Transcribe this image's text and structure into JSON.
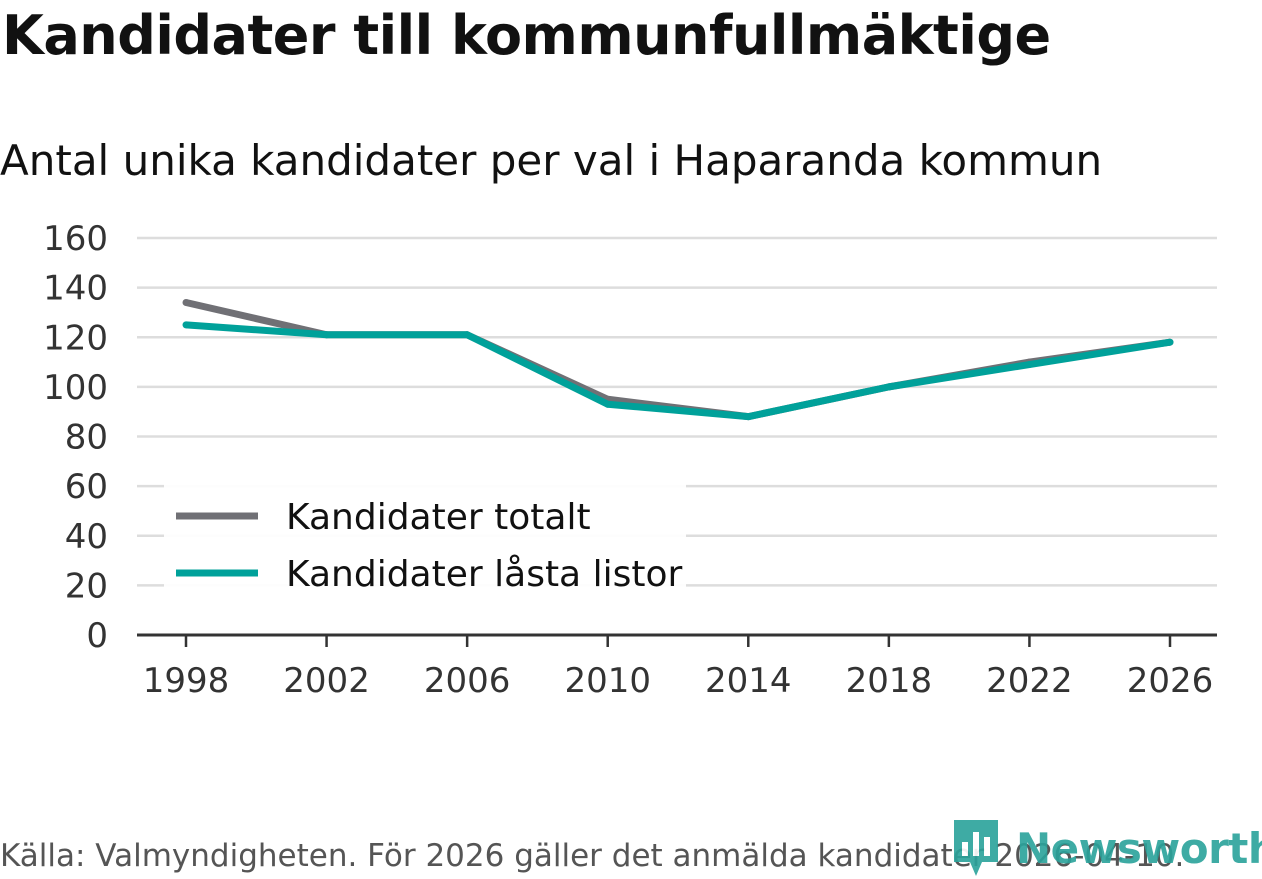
{
  "title": "Kandidater till kommunfullmäktige",
  "subtitle": "Antal unika kandidater per val i Haparanda kommun",
  "footer": "Källa: Valmyndigheten. För 2026 gäller det anmälda kandidater 2026-04-10.",
  "brand": {
    "name": "Newsworthy",
    "icon": "bar-chart-logo-icon",
    "color": "#2aa39b"
  },
  "chart_data": {
    "type": "line",
    "title": "Kandidater till kommunfullmäktige",
    "subtitle": "Antal unika kandidater per val i Haparanda kommun",
    "xlabel": "",
    "ylabel": "",
    "x": [
      1998,
      2002,
      2006,
      2010,
      2014,
      2018,
      2022,
      2026
    ],
    "x_tick_labels": [
      "1998",
      "2002",
      "2006",
      "2010",
      "2014",
      "2018",
      "2022",
      "2026"
    ],
    "ylim": [
      0,
      160
    ],
    "y_ticks": [
      0,
      20,
      40,
      60,
      80,
      100,
      120,
      140,
      160
    ],
    "y_tick_labels": [
      "0",
      "20",
      "40",
      "60",
      "80",
      "100",
      "120",
      "140",
      "160"
    ],
    "grid": true,
    "legend_position": "bottom-left",
    "series": [
      {
        "name": "Kandidater totalt",
        "color": "#707075",
        "values": [
          134,
          121,
          121,
          95,
          88,
          100,
          110,
          118
        ]
      },
      {
        "name": "Kandidater låsta listor",
        "color": "#00a19a",
        "values": [
          125,
          121,
          121,
          93,
          88,
          100,
          109,
          118
        ]
      }
    ]
  }
}
